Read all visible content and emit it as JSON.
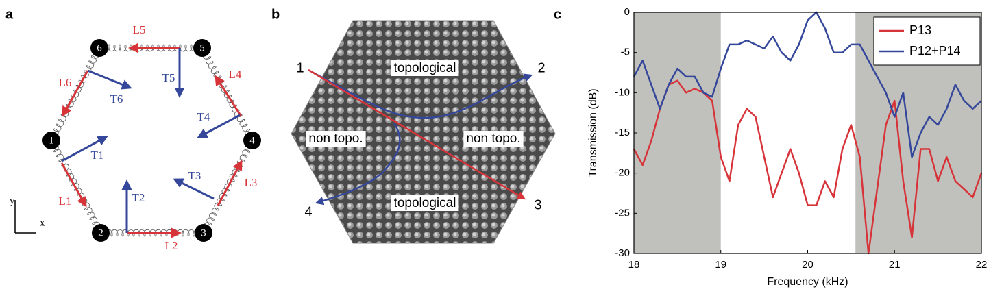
{
  "panel_a": {
    "letter": "a",
    "nodes": [
      "1",
      "2",
      "3",
      "4",
      "5",
      "6"
    ],
    "edge_labels": [
      "L1",
      "L2",
      "L3",
      "L4",
      "L5",
      "L6"
    ],
    "arrow_labels": [
      "T1",
      "T2",
      "T3",
      "T4",
      "T5",
      "T6"
    ],
    "axis_x": "x",
    "axis_y": "y"
  },
  "panel_b": {
    "letter": "b",
    "region_labels": [
      "topological",
      "non topo.",
      "non topo.",
      "topological"
    ],
    "port_labels": [
      "1",
      "2",
      "3",
      "4"
    ]
  },
  "chart_data": {
    "type": "line",
    "panel_letter": "c",
    "xlabel": "Frequency (kHz)",
    "ylabel": "Transmission (dB)",
    "x": [
      18.0,
      18.1,
      18.2,
      18.3,
      18.4,
      18.5,
      18.6,
      18.7,
      18.8,
      18.9,
      19.0,
      19.1,
      19.2,
      19.3,
      19.4,
      19.5,
      19.6,
      19.7,
      19.8,
      19.9,
      20.0,
      20.1,
      20.2,
      20.3,
      20.4,
      20.5,
      20.6,
      20.7,
      20.8,
      20.9,
      21.0,
      21.1,
      21.2,
      21.3,
      21.4,
      21.5,
      21.6,
      21.7,
      21.8,
      21.9,
      22.0
    ],
    "series": [
      {
        "name": "P13",
        "color": "#d7343a",
        "values": [
          -17,
          -19,
          -16,
          -12,
          -9,
          -8.5,
          -10,
          -9.5,
          -10,
          -11,
          -18,
          -21,
          -14,
          -12,
          -13,
          -18,
          -23,
          -20,
          -17,
          -20,
          -24,
          -24,
          -21,
          -23,
          -17,
          -14,
          -18,
          -30,
          -22,
          -14,
          -11,
          -21,
          -28,
          -17,
          -17,
          -21,
          -18,
          -21,
          -22,
          -23,
          -20
        ]
      },
      {
        "name": "P12+P14",
        "color": "#34479a",
        "values": [
          -8,
          -6,
          -9,
          -12,
          -9,
          -7,
          -8,
          -8,
          -10,
          -10.5,
          -7,
          -4,
          -4,
          -3.5,
          -4,
          -4.5,
          -3,
          -5,
          -6,
          -4,
          -1,
          0,
          -2,
          -5,
          -5,
          -4,
          -4,
          -6,
          -8,
          -10,
          -13,
          -10,
          -18,
          -15,
          -13,
          -14,
          -12,
          -9,
          -11,
          -12,
          -11
        ]
      }
    ],
    "xlim": [
      18,
      22
    ],
    "xticks": [
      18,
      19,
      20,
      21,
      22
    ],
    "ylim": [
      -30,
      0
    ],
    "yticks": [
      0,
      -5,
      -10,
      -15,
      -20,
      -25,
      -30
    ],
    "shaded_regions": [
      [
        18,
        19
      ],
      [
        20.55,
        22
      ]
    ],
    "shade_color": "#c0c0bc",
    "legend": "upper right"
  }
}
